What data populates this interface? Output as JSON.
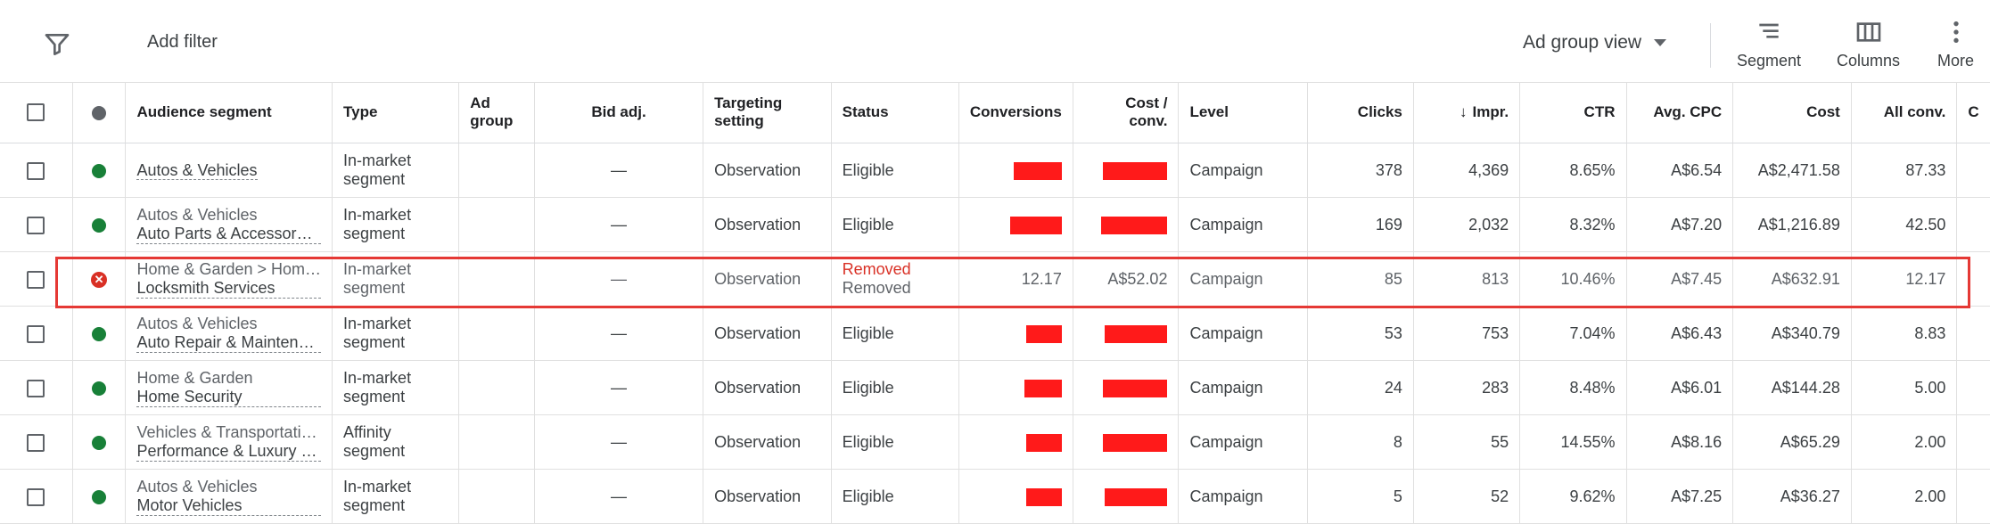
{
  "toolbar": {
    "add_filter": "Add filter",
    "view_label": "Ad group view",
    "segment_label": "Segment",
    "columns_label": "Columns",
    "more_label": "More"
  },
  "columns": {
    "audience_segment": "Audience segment",
    "type": "Type",
    "ad_group_line1": "Ad",
    "ad_group_line2": "group",
    "bid_adj": "Bid adj.",
    "targeting_line1": "Targeting",
    "targeting_line2": "setting",
    "status": "Status",
    "conversions": "Conversions",
    "cost_conv_line1": "Cost /",
    "cost_conv_line2": "conv.",
    "level": "Level",
    "clicks": "Clicks",
    "impr": "Impr.",
    "ctr": "CTR",
    "avg_cpc": "Avg. CPC",
    "cost": "Cost",
    "all_conv": "All conv.",
    "partial": "C"
  },
  "rows": [
    {
      "seg_top": "",
      "seg_main": "Autos & Vehicles",
      "type1": "In-market",
      "type2": "segment",
      "bid": "—",
      "targeting": "Observation",
      "status1": "Eligible",
      "status2": "",
      "conversions": "",
      "cost_conv": "",
      "level": "Campaign",
      "clicks": "378",
      "impr": "4,369",
      "ctr": "8.65%",
      "avg_cpc": "A$6.54",
      "cost": "A$2,471.58",
      "all_conv": "87.33",
      "removed": false
    },
    {
      "seg_top": "Autos & Vehicles",
      "seg_main": "Auto Parts & Accessor…",
      "type1": "In-market",
      "type2": "segment",
      "bid": "—",
      "targeting": "Observation",
      "status1": "Eligible",
      "status2": "",
      "conversions": "",
      "cost_conv": "",
      "level": "Campaign",
      "clicks": "169",
      "impr": "2,032",
      "ctr": "8.32%",
      "avg_cpc": "A$7.20",
      "cost": "A$1,216.89",
      "all_conv": "42.50",
      "removed": false
    },
    {
      "seg_top": "Home & Garden > Hom…",
      "seg_main": "Locksmith Services",
      "type1": "In-market",
      "type2": "segment",
      "bid": "—",
      "targeting": "Observation",
      "status1": "Removed",
      "status2": "Removed",
      "conversions": "12.17",
      "cost_conv": "A$52.02",
      "level": "Campaign",
      "clicks": "85",
      "impr": "813",
      "ctr": "10.46%",
      "avg_cpc": "A$7.45",
      "cost": "A$632.91",
      "all_conv": "12.17",
      "removed": true
    },
    {
      "seg_top": "Autos & Vehicles",
      "seg_main": "Auto Repair & Mainten…",
      "type1": "In-market",
      "type2": "segment",
      "bid": "—",
      "targeting": "Observation",
      "status1": "Eligible",
      "status2": "",
      "conversions": "",
      "cost_conv": "",
      "level": "Campaign",
      "clicks": "53",
      "impr": "753",
      "ctr": "7.04%",
      "avg_cpc": "A$6.43",
      "cost": "A$340.79",
      "all_conv": "8.83",
      "removed": false
    },
    {
      "seg_top": "Home & Garden",
      "seg_main": "Home Security",
      "type1": "In-market",
      "type2": "segment",
      "bid": "—",
      "targeting": "Observation",
      "status1": "Eligible",
      "status2": "",
      "conversions": "",
      "cost_conv": "",
      "level": "Campaign",
      "clicks": "24",
      "impr": "283",
      "ctr": "8.48%",
      "avg_cpc": "A$6.01",
      "cost": "A$144.28",
      "all_conv": "5.00",
      "removed": false
    },
    {
      "seg_top": "Vehicles & Transportati…",
      "seg_main": "Performance & Luxury …",
      "type1": "Affinity",
      "type2": "segment",
      "bid": "—",
      "targeting": "Observation",
      "status1": "Eligible",
      "status2": "",
      "conversions": "",
      "cost_conv": "",
      "level": "Campaign",
      "clicks": "8",
      "impr": "55",
      "ctr": "14.55%",
      "avg_cpc": "A$8.16",
      "cost": "A$65.29",
      "all_conv": "2.00",
      "removed": false
    },
    {
      "seg_top": "Autos & Vehicles",
      "seg_main": "Motor Vehicles",
      "type1": "In-market",
      "type2": "segment",
      "bid": "—",
      "targeting": "Observation",
      "status1": "Eligible",
      "status2": "",
      "conversions": "",
      "cost_conv": "",
      "level": "Campaign",
      "clicks": "5",
      "impr": "52",
      "ctr": "9.62%",
      "avg_cpc": "A$7.25",
      "cost": "A$36.27",
      "all_conv": "2.00",
      "removed": false
    }
  ],
  "colors": {
    "eligible_dot": "#188038",
    "removed": "#d93025",
    "highlight": "#e53935",
    "redaction": "#ff1a1a"
  }
}
